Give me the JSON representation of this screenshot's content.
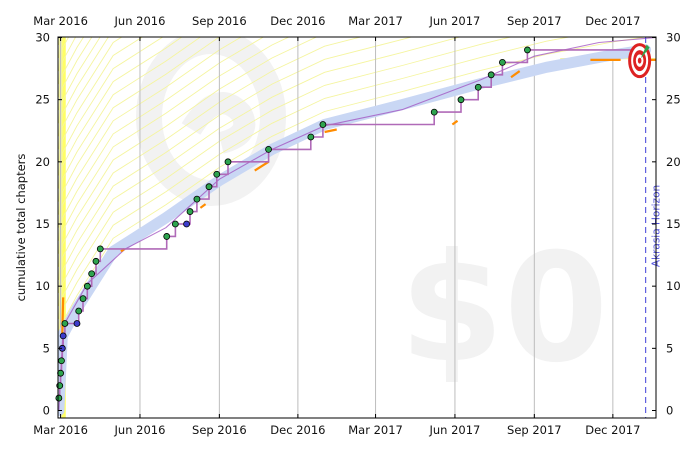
{
  "chart_data": {
    "type": "line",
    "title": "",
    "ylabel": "cumulative total chapters",
    "xlabel": "",
    "ylim": [
      0,
      30
    ],
    "y_ticks": [
      0,
      5,
      10,
      15,
      20,
      25,
      30
    ],
    "x_ticks": [
      {
        "label": "Mar 2016",
        "date": "2016-03-01"
      },
      {
        "label": "Jun 2016",
        "date": "2016-06-01"
      },
      {
        "label": "Sep 2016",
        "date": "2016-09-01"
      },
      {
        "label": "Dec 2016",
        "date": "2016-12-01"
      },
      {
        "label": "Mar 2017",
        "date": "2017-03-01"
      },
      {
        "label": "Jun 2017",
        "date": "2017-06-01"
      },
      {
        "label": "Sep 2017",
        "date": "2017-09-01"
      },
      {
        "label": "Dec 2017",
        "date": "2017-12-01"
      }
    ],
    "xlim": [
      "2016-02-27",
      "2018-01-20"
    ],
    "grid": true,
    "watermark_pledge": "$0",
    "horizon_label": "Akrasia Horizon",
    "horizon_date": "2018-01-08",
    "goal_value": 28.3,
    "series": [
      {
        "points": [
          {
            "x": "2016-02-28",
            "y": 1,
            "kind": "ok"
          },
          {
            "x": "2016-02-29",
            "y": 2,
            "kind": "ok"
          },
          {
            "x": "2016-03-01",
            "y": 3,
            "kind": "ok"
          },
          {
            "x": "2016-03-02",
            "y": 4,
            "kind": "ok"
          },
          {
            "x": "2016-03-03",
            "y": 5,
            "kind": "blue"
          },
          {
            "x": "2016-03-04",
            "y": 6,
            "kind": "blue"
          },
          {
            "x": "2016-03-06",
            "y": 7,
            "kind": "ok"
          },
          {
            "x": "2016-03-20",
            "y": 7,
            "kind": "blue"
          },
          {
            "x": "2016-03-22",
            "y": 8,
            "kind": "ok"
          },
          {
            "x": "2016-03-27",
            "y": 9,
            "kind": "ok"
          },
          {
            "x": "2016-04-01",
            "y": 10,
            "kind": "ok"
          },
          {
            "x": "2016-04-06",
            "y": 11,
            "kind": "ok"
          },
          {
            "x": "2016-04-11",
            "y": 12,
            "kind": "ok"
          },
          {
            "x": "2016-04-16",
            "y": 13,
            "kind": "ok"
          },
          {
            "x": "2016-07-02",
            "y": 14,
            "kind": "ok"
          },
          {
            "x": "2016-07-12",
            "y": 15,
            "kind": "ok"
          },
          {
            "x": "2016-07-25",
            "y": 15,
            "kind": "blue"
          },
          {
            "x": "2016-07-29",
            "y": 16,
            "kind": "ok"
          },
          {
            "x": "2016-08-06",
            "y": 17,
            "kind": "ok"
          },
          {
            "x": "2016-08-20",
            "y": 18,
            "kind": "ok"
          },
          {
            "x": "2016-08-29",
            "y": 19,
            "kind": "ok"
          },
          {
            "x": "2016-09-11",
            "y": 20,
            "kind": "ok"
          },
          {
            "x": "2016-10-28",
            "y": 21,
            "kind": "ok"
          },
          {
            "x": "2016-12-16",
            "y": 22,
            "kind": "ok"
          },
          {
            "x": "2016-12-30",
            "y": 23,
            "kind": "ok"
          },
          {
            "x": "2017-05-08",
            "y": 24,
            "kind": "ok"
          },
          {
            "x": "2017-06-08",
            "y": 25,
            "kind": "ok"
          },
          {
            "x": "2017-06-28",
            "y": 26,
            "kind": "ok"
          },
          {
            "x": "2017-07-13",
            "y": 27,
            "kind": "ok"
          },
          {
            "x": "2017-07-26",
            "y": 28,
            "kind": "ok"
          },
          {
            "x": "2017-08-24",
            "y": 29,
            "kind": "ok"
          }
        ]
      }
    ],
    "flat_line_end": {
      "x": "2018-01-08",
      "y": 29
    },
    "road": [
      {
        "x": "2016-02-28",
        "y": 0
      },
      {
        "x": "2016-03-03",
        "y": 6
      },
      {
        "x": "2016-03-20",
        "y": 8.2
      },
      {
        "x": "2016-05-01",
        "y": 12.8
      },
      {
        "x": "2016-07-01",
        "y": 15.5
      },
      {
        "x": "2016-09-01",
        "y": 18.5
      },
      {
        "x": "2016-11-01",
        "y": 21.0
      },
      {
        "x": "2017-01-01",
        "y": 23.0
      },
      {
        "x": "2017-04-01",
        "y": 24.6
      },
      {
        "x": "2017-07-01",
        "y": 26.3
      },
      {
        "x": "2017-09-15",
        "y": 27.6
      },
      {
        "x": "2017-12-01",
        "y": 28.6
      },
      {
        "x": "2018-01-08",
        "y": 29.0
      }
    ],
    "rolling_average": [
      {
        "x": "2016-02-28",
        "y": 0
      },
      {
        "x": "2016-03-04",
        "y": 6.8
      },
      {
        "x": "2016-04-01",
        "y": 10.2
      },
      {
        "x": "2016-05-15",
        "y": 13.0
      },
      {
        "x": "2016-07-01",
        "y": 14.7
      },
      {
        "x": "2016-09-01",
        "y": 18.6
      },
      {
        "x": "2016-11-01",
        "y": 21.0
      },
      {
        "x": "2017-01-01",
        "y": 22.9
      },
      {
        "x": "2017-04-01",
        "y": 24.2
      },
      {
        "x": "2017-07-01",
        "y": 26.6
      },
      {
        "x": "2017-09-01",
        "y": 28.5
      },
      {
        "x": "2017-11-15",
        "y": 29.6
      },
      {
        "x": "2018-01-20",
        "y": 30.0
      }
    ],
    "orange_segments": [
      [
        {
          "x": "2016-03-03",
          "y": 6.2
        },
        {
          "x": "2016-03-04",
          "y": 9.1
        }
      ],
      [
        {
          "x": "2016-05-10",
          "y": 12.8
        },
        {
          "x": "2016-05-14",
          "y": 13.0
        }
      ],
      [
        {
          "x": "2016-08-10",
          "y": 16.3
        },
        {
          "x": "2016-08-16",
          "y": 16.6
        }
      ],
      [
        {
          "x": "2016-10-12",
          "y": 19.3
        },
        {
          "x": "2016-10-28",
          "y": 20.0
        }
      ],
      [
        {
          "x": "2017-01-01",
          "y": 22.4
        },
        {
          "x": "2017-01-15",
          "y": 22.6
        }
      ],
      [
        {
          "x": "2017-05-29",
          "y": 23.0
        },
        {
          "x": "2017-06-04",
          "y": 23.3
        }
      ],
      [
        {
          "x": "2017-08-05",
          "y": 26.8
        },
        {
          "x": "2017-08-15",
          "y": 27.3
        }
      ],
      [
        {
          "x": "2017-11-05",
          "y": 28.2
        },
        {
          "x": "2017-12-10",
          "y": 28.2
        }
      ],
      [
        {
          "x": "2018-01-10",
          "y": 28.2
        },
        {
          "x": "2018-01-20",
          "y": 28.2
        }
      ]
    ],
    "colors": {
      "dot_ok": "#2ea44f",
      "dot_blue": "#3d3dcc",
      "step_line": "#b06ab8",
      "road": "#c9d7f4",
      "rolling_average": "#a050c0",
      "guideline": "#f5f5a0",
      "yellow_strip": "#ffff66",
      "orange": "#ff8c00",
      "horizon": "#5151dd",
      "grid": "#bdbdbd",
      "watermark": "#f2f2f2",
      "target_red": "#dd2222"
    }
  }
}
